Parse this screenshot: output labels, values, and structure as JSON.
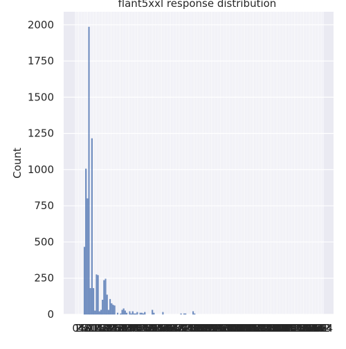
{
  "chart_data": {
    "type": "bar",
    "title": "flant5xxl response distribution",
    "xlabel": "",
    "ylabel": "Count",
    "ylim": [
      0,
      2090
    ],
    "yticks": [
      0,
      250,
      500,
      750,
      1000,
      1250,
      1500,
      1750,
      2000
    ],
    "grid": true,
    "bar_color": "#4c72b0",
    "background": "#eaeaf2",
    "n_categories": 165,
    "values": [
      0,
      0,
      0,
      0,
      0,
      0,
      465,
      1005,
      800,
      1985,
      180,
      1215,
      180,
      25,
      275,
      270,
      20,
      30,
      100,
      235,
      245,
      135,
      30,
      105,
      75,
      65,
      60,
      0,
      10,
      0,
      5,
      30,
      40,
      25,
      10,
      0,
      20,
      5,
      20,
      5,
      5,
      15,
      0,
      10,
      10,
      5,
      15,
      0,
      0,
      0,
      0,
      30,
      10,
      0,
      0,
      0,
      0,
      0,
      15,
      0,
      0,
      0,
      0,
      0,
      0,
      0,
      0,
      0,
      0,
      0,
      5,
      0,
      5,
      5,
      0,
      0,
      0,
      0,
      20,
      5,
      0,
      0,
      0,
      0,
      0,
      0,
      0,
      0,
      0,
      0,
      0,
      0,
      0,
      0,
      0,
      0,
      0,
      0,
      0,
      0,
      0,
      0,
      0,
      0,
      0,
      0,
      0,
      0,
      0,
      0,
      0,
      0,
      0,
      0,
      0,
      0,
      0,
      0,
      0,
      0,
      0,
      0,
      0,
      0,
      0,
      0,
      0,
      0,
      0,
      0,
      0,
      0,
      0,
      0,
      0,
      0,
      0,
      0,
      0,
      0,
      0,
      0,
      0,
      0,
      0,
      0,
      0,
      0,
      0,
      0,
      0,
      0,
      0,
      0,
      0,
      0,
      0,
      0,
      0,
      0,
      0,
      0,
      0,
      0,
      0
    ]
  }
}
